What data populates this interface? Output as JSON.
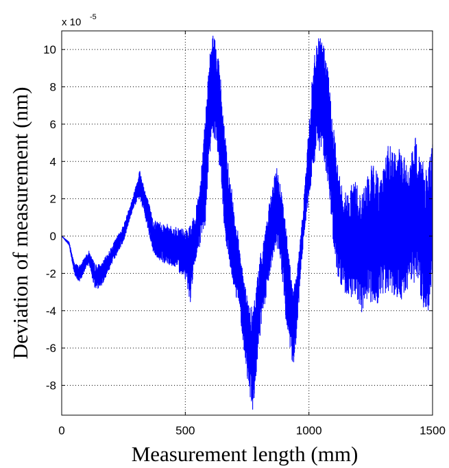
{
  "chart_data": {
    "type": "line",
    "xlabel": "Measurement length (mm)",
    "ylabel": "Deviation of measurement (nm)",
    "y_exponent_label": "x 10",
    "y_exponent_power": "-5",
    "xlim": [
      0,
      1500
    ],
    "ylim": [
      -9.6,
      11
    ],
    "x_ticks": [
      0,
      500,
      1000,
      1500
    ],
    "y_ticks": [
      -8,
      -6,
      -4,
      -2,
      0,
      2,
      4,
      6,
      8,
      10
    ],
    "grid": true,
    "grid_style": "dotted",
    "series": [
      {
        "color": "#0000ff",
        "envelope_upper": [
          [
            0,
            0
          ],
          [
            30,
            -0.3
          ],
          [
            50,
            -1.4
          ],
          [
            70,
            -1.6
          ],
          [
            90,
            -1.2
          ],
          [
            110,
            -0.8
          ],
          [
            135,
            -1.5
          ],
          [
            160,
            -1.5
          ],
          [
            200,
            -0.6
          ],
          [
            250,
            0.6
          ],
          [
            290,
            2.2
          ],
          [
            315,
            3.6
          ],
          [
            340,
            2.4
          ],
          [
            370,
            0.9
          ],
          [
            400,
            0.8
          ],
          [
            450,
            0.5
          ],
          [
            480,
            0.5
          ],
          [
            500,
            0.3
          ],
          [
            520,
            0.6
          ],
          [
            540,
            1.2
          ],
          [
            560,
            3.0
          ],
          [
            580,
            6.5
          ],
          [
            600,
            9.8
          ],
          [
            610,
            10.9
          ],
          [
            625,
            10.5
          ],
          [
            640,
            9.0
          ],
          [
            660,
            5.5
          ],
          [
            680,
            3.2
          ],
          [
            700,
            1.5
          ],
          [
            720,
            -0.5
          ],
          [
            740,
            -2.5
          ],
          [
            760,
            -3.8
          ],
          [
            775,
            -3.8
          ],
          [
            790,
            -2.2
          ],
          [
            810,
            -0.5
          ],
          [
            830,
            1.0
          ],
          [
            850,
            2.5
          ],
          [
            870,
            3.8
          ],
          [
            890,
            2.5
          ],
          [
            910,
            0.2
          ],
          [
            935,
            -2.7
          ],
          [
            950,
            -2.0
          ],
          [
            970,
            0.5
          ],
          [
            990,
            4.0
          ],
          [
            1010,
            8.0
          ],
          [
            1030,
            10.6
          ],
          [
            1055,
            10.6
          ],
          [
            1075,
            9.2
          ],
          [
            1100,
            5.8
          ],
          [
            1120,
            3.5
          ],
          [
            1140,
            2.5
          ],
          [
            1160,
            2.3
          ],
          [
            1185,
            3.2
          ],
          [
            1210,
            2.2
          ],
          [
            1230,
            3.0
          ],
          [
            1260,
            4.0
          ],
          [
            1290,
            3.2
          ],
          [
            1320,
            5.0
          ],
          [
            1350,
            4.5
          ],
          [
            1380,
            4.8
          ],
          [
            1400,
            3.5
          ],
          [
            1430,
            5.3
          ],
          [
            1460,
            4.2
          ],
          [
            1480,
            3.5
          ],
          [
            1500,
            5.0
          ]
        ],
        "envelope_lower": [
          [
            0,
            0
          ],
          [
            30,
            -0.5
          ],
          [
            50,
            -2.0
          ],
          [
            70,
            -2.5
          ],
          [
            90,
            -2.0
          ],
          [
            110,
            -1.5
          ],
          [
            135,
            -2.9
          ],
          [
            160,
            -2.7
          ],
          [
            200,
            -1.6
          ],
          [
            250,
            -0.3
          ],
          [
            290,
            1.5
          ],
          [
            315,
            2.0
          ],
          [
            340,
            0.8
          ],
          [
            370,
            -0.9
          ],
          [
            400,
            -1.4
          ],
          [
            450,
            -1.6
          ],
          [
            480,
            -2.0
          ],
          [
            500,
            -2.3
          ],
          [
            520,
            -3.6
          ],
          [
            540,
            -1.5
          ],
          [
            560,
            -0.5
          ],
          [
            580,
            0.5
          ],
          [
            600,
            4.5
          ],
          [
            610,
            5.5
          ],
          [
            625,
            5.0
          ],
          [
            640,
            3.5
          ],
          [
            660,
            0.0
          ],
          [
            680,
            -1.8
          ],
          [
            700,
            -3.0
          ],
          [
            720,
            -4.0
          ],
          [
            740,
            -6.5
          ],
          [
            760,
            -8.5
          ],
          [
            775,
            -9.5
          ],
          [
            790,
            -7.0
          ],
          [
            810,
            -4.5
          ],
          [
            830,
            -3.2
          ],
          [
            850,
            -1.5
          ],
          [
            870,
            -0.5
          ],
          [
            890,
            -2.0
          ],
          [
            910,
            -5.0
          ],
          [
            935,
            -7.3
          ],
          [
            950,
            -5.5
          ],
          [
            970,
            -1.5
          ],
          [
            990,
            1.0
          ],
          [
            1010,
            2.5
          ],
          [
            1030,
            4.5
          ],
          [
            1055,
            4.5
          ],
          [
            1075,
            3.0
          ],
          [
            1100,
            -0.5
          ],
          [
            1120,
            -2.5
          ],
          [
            1140,
            -3.0
          ],
          [
            1160,
            -3.5
          ],
          [
            1185,
            -3.0
          ],
          [
            1210,
            -4.2
          ],
          [
            1230,
            -3.5
          ],
          [
            1260,
            -3.8
          ],
          [
            1290,
            -3.5
          ],
          [
            1320,
            -3.0
          ],
          [
            1350,
            -3.2
          ],
          [
            1380,
            -3.5
          ],
          [
            1400,
            -3.0
          ],
          [
            1430,
            -2.5
          ],
          [
            1460,
            -3.8
          ],
          [
            1480,
            -4.2
          ],
          [
            1500,
            -3.0
          ]
        ]
      }
    ]
  }
}
